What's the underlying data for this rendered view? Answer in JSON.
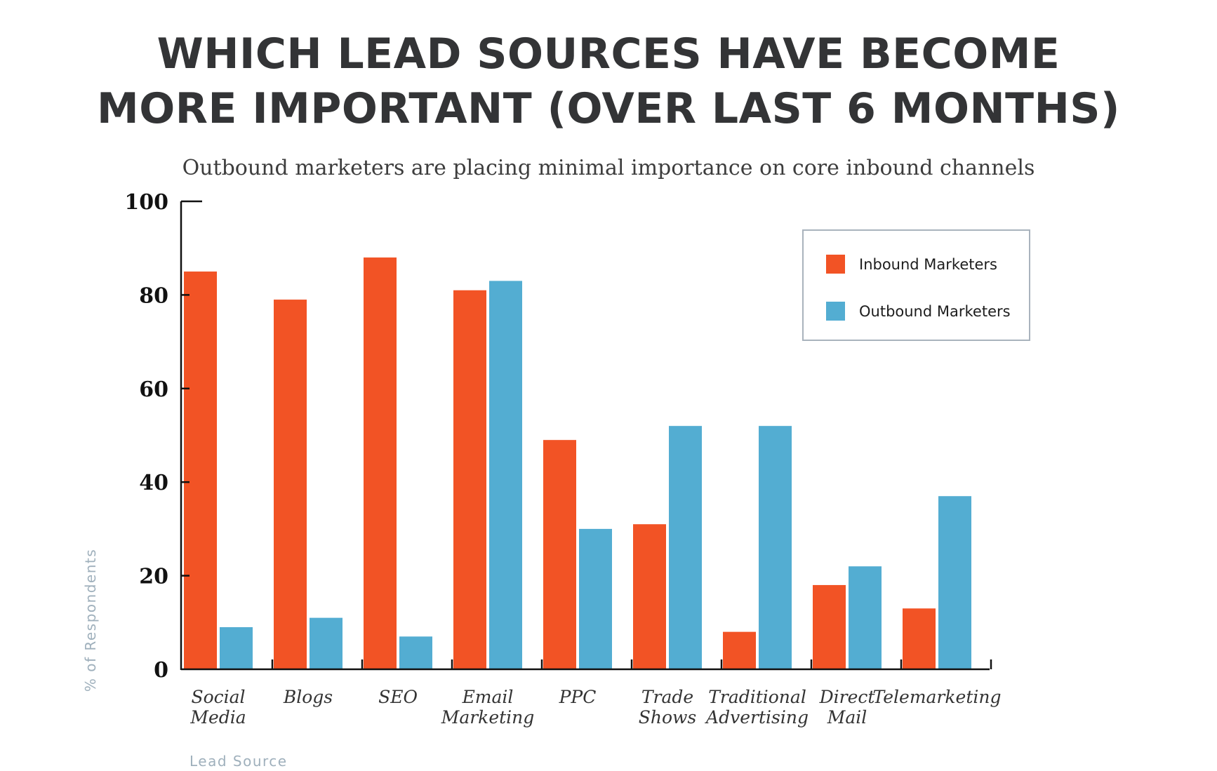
{
  "chart_data": {
    "type": "bar",
    "title_lines": [
      "WHICH LEAD SOURCES HAVE BECOME",
      "MORE IMPORTANT (OVER LAST 6 MONTHS)"
    ],
    "subtitle": "Outbound marketers are placing minimal importance on core inbound channels",
    "xlabel": "Lead Source",
    "ylabel": "% of Respondents",
    "ylim": [
      0,
      100
    ],
    "yticks": [
      0,
      20,
      40,
      60,
      80,
      100
    ],
    "categories": [
      [
        "Social",
        "Media"
      ],
      [
        "Blogs"
      ],
      [
        "SEO"
      ],
      [
        "Email",
        "Marketing"
      ],
      [
        "PPC"
      ],
      [
        "Trade",
        "Shows"
      ],
      [
        "Traditional",
        "Advertising"
      ],
      [
        "Direct",
        "Mail"
      ],
      [
        "Telemarketing"
      ]
    ],
    "series": [
      {
        "name": "Inbound Marketers",
        "color": "#f25325",
        "values": [
          85,
          79,
          88,
          81,
          49,
          31,
          8,
          18,
          13
        ]
      },
      {
        "name": "Outbound Marketers",
        "color": "#53add2",
        "values": [
          9,
          11,
          7,
          83,
          30,
          52,
          52,
          22,
          37
        ]
      }
    ],
    "grid": false,
    "legend_position": "top-right"
  }
}
